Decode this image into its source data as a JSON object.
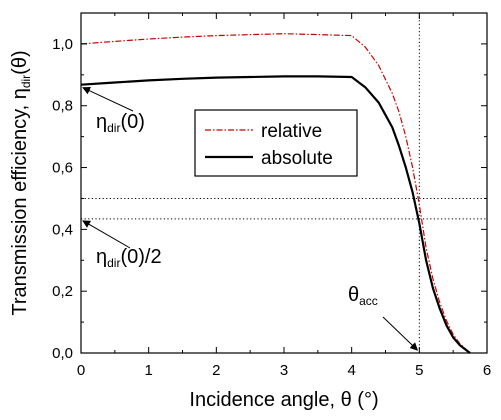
{
  "chart_data": {
    "type": "line",
    "xlabel": "Incidence angle, θ (°)",
    "ylabel": "Transmission efficiency, η_dir(θ)",
    "xlim": [
      0,
      6
    ],
    "ylim": [
      0,
      1.1
    ],
    "x_ticks": [
      0,
      1,
      2,
      3,
      4,
      5,
      6
    ],
    "x_tick_labels": [
      "0",
      "1",
      "2",
      "3",
      "4",
      "5",
      "6"
    ],
    "y_ticks": [
      0,
      0.2,
      0.4,
      0.6,
      0.8,
      1.0
    ],
    "y_tick_labels": [
      "0,0",
      "0,2",
      "0,4",
      "0,6",
      "0,8",
      "1,0"
    ],
    "grid": false,
    "legend_position": "center",
    "series": [
      {
        "name": "relative",
        "color": "#cc0000",
        "style": "dash-dot",
        "x": [
          0,
          0.5,
          1,
          1.5,
          2,
          2.5,
          3,
          3.5,
          4,
          4.2,
          4.4,
          4.6,
          4.7,
          4.8,
          4.9,
          5.0,
          5.1,
          5.2,
          5.3,
          5.4,
          5.5,
          5.6,
          5.7,
          5.75
        ],
        "y": [
          1.0,
          1.008,
          1.016,
          1.022,
          1.027,
          1.03,
          1.033,
          1.03,
          1.027,
          0.99,
          0.93,
          0.84,
          0.78,
          0.7,
          0.6,
          0.48,
          0.34,
          0.24,
          0.165,
          0.105,
          0.06,
          0.03,
          0.01,
          0.0
        ]
      },
      {
        "name": "absolute",
        "color": "#000000",
        "style": "solid",
        "x": [
          0,
          0.5,
          1,
          1.5,
          2,
          2.5,
          3,
          3.5,
          4,
          4.2,
          4.4,
          4.6,
          4.7,
          4.8,
          4.9,
          5.0,
          5.1,
          5.2,
          5.3,
          5.4,
          5.5,
          5.6,
          5.7,
          5.75
        ],
        "y": [
          0.868,
          0.875,
          0.882,
          0.887,
          0.891,
          0.893,
          0.895,
          0.895,
          0.893,
          0.86,
          0.81,
          0.73,
          0.67,
          0.6,
          0.52,
          0.42,
          0.3,
          0.21,
          0.145,
          0.09,
          0.05,
          0.025,
          0.008,
          0.0
        ]
      }
    ],
    "reference_lines": [
      {
        "orientation": "horizontal",
        "value": 0.5,
        "style": "dotted"
      },
      {
        "orientation": "horizontal",
        "value": 0.434,
        "style": "dotted"
      },
      {
        "orientation": "vertical",
        "value": 5.0,
        "style": "dotted"
      }
    ],
    "annotations": [
      {
        "label": "η_dir(0)",
        "target": [
          0,
          0.868
        ]
      },
      {
        "label": "η_dir(0)/2",
        "target": [
          0,
          0.434
        ]
      },
      {
        "label": "θ_acc",
        "target": [
          5.0,
          0
        ]
      }
    ]
  }
}
